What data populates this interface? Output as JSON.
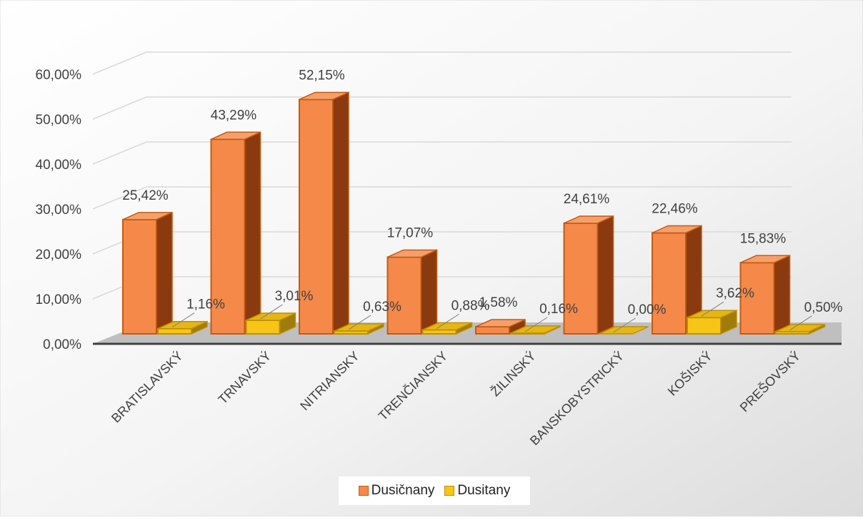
{
  "chart_data": {
    "type": "bar",
    "categories": [
      "BRATISLAVSKÝ",
      "TRNAVSKÝ",
      "NITRIANSKY",
      "TRENČIANSKY",
      "ŽILINSKÝ",
      "BANSKOBYSTRICKÝ",
      "KOŠISKÝ",
      "PREŠOVSKÝ"
    ],
    "series": [
      {
        "name": "Dusičnany",
        "values": [
          25.42,
          43.29,
          52.15,
          17.07,
          1.58,
          24.61,
          22.46,
          15.83
        ],
        "labels": [
          "25,42%",
          "43,29%",
          "52,15%",
          "17,07%",
          "1,58%",
          "24,61%",
          "22,46%",
          "15,83%"
        ],
        "color": "#F4894A"
      },
      {
        "name": "Dusitany",
        "values": [
          1.16,
          3.01,
          0.63,
          0.88,
          0.16,
          0.0,
          3.62,
          0.5
        ],
        "labels": [
          "1,16%",
          "3,01%",
          "0,63%",
          "0,88%",
          "0,16%",
          "0,00%",
          "3,62%",
          "0,50%"
        ],
        "color": "#F6C518"
      }
    ],
    "y_ticks": [
      "0,00%",
      "10,00%",
      "20,00%",
      "30,00%",
      "40,00%",
      "50,00%",
      "60,00%"
    ],
    "ylim": [
      0,
      60
    ],
    "grid": true,
    "legend_position": "bottom",
    "style": "3d-clustered-column"
  }
}
